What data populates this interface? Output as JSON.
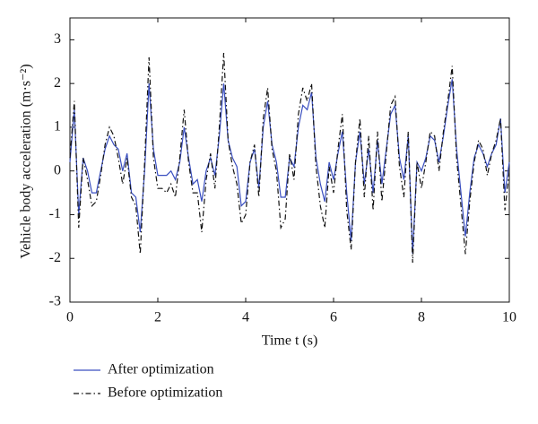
{
  "chart_data": {
    "type": "line",
    "xlabel": "Time t (s)",
    "ylabel": "Vehicle body acceleration (m·s⁻²)",
    "xlim": [
      0,
      10
    ],
    "xticks": [
      0,
      2,
      4,
      6,
      8,
      10
    ],
    "ylim": [
      -3,
      3.5
    ],
    "yticks": [
      -3,
      -2,
      -1,
      0,
      1,
      2,
      3
    ],
    "x": [
      0,
      0.1,
      0.2,
      0.3,
      0.4,
      0.5,
      0.6,
      0.7,
      0.8,
      0.9,
      1,
      1.1,
      1.2,
      1.3,
      1.4,
      1.5,
      1.6,
      1.7,
      1.8,
      1.9,
      2,
      2.1,
      2.2,
      2.3,
      2.4,
      2.5,
      2.6,
      2.7,
      2.8,
      2.9,
      3,
      3.1,
      3.2,
      3.3,
      3.4,
      3.5,
      3.6,
      3.7,
      3.8,
      3.9,
      4,
      4.1,
      4.2,
      4.3,
      4.4,
      4.5,
      4.6,
      4.7,
      4.8,
      4.9,
      5,
      5.1,
      5.2,
      5.3,
      5.4,
      5.5,
      5.6,
      5.7,
      5.8,
      5.9,
      6,
      6.1,
      6.2,
      6.3,
      6.4,
      6.5,
      6.6,
      6.7,
      6.8,
      6.9,
      7,
      7.1,
      7.2,
      7.3,
      7.4,
      7.5,
      7.6,
      7.7,
      7.8,
      7.9,
      8,
      8.1,
      8.2,
      8.3,
      8.4,
      8.5,
      8.6,
      8.7,
      8.8,
      8.9,
      9,
      9.1,
      9.2,
      9.3,
      9.4,
      9.5,
      9.6,
      9.7,
      9.8,
      9.9,
      10
    ],
    "series": [
      {
        "name": "After optimization",
        "color": "#3a4fc0",
        "style": "solid",
        "values": [
          0.2,
          1.4,
          -1.0,
          0.3,
          0,
          -0.5,
          -0.5,
          0,
          0.5,
          0.8,
          0.6,
          0.5,
          0,
          0.4,
          -0.5,
          -0.6,
          -1.4,
          0,
          2.0,
          0.5,
          -0.1,
          -0.1,
          -0.1,
          0,
          -0.2,
          0.2,
          1.0,
          0.3,
          -0.3,
          -0.2,
          -0.7,
          0,
          0.3,
          -0.1,
          0.8,
          2.0,
          0.7,
          0.3,
          0.1,
          -0.8,
          -0.7,
          0.2,
          0.5,
          -0.4,
          1.0,
          1.6,
          0.6,
          0.2,
          -0.6,
          -0.6,
          0.3,
          0.1,
          1.0,
          1.5,
          1.4,
          1.8,
          0.3,
          -0.3,
          -0.7,
          0.2,
          -0.2,
          0.4,
          0.9,
          -0.5,
          -1.6,
          0.2,
          0.9,
          -0.3,
          0.5,
          -0.5,
          0.7,
          -0.3,
          0.5,
          1.3,
          1.5,
          0.3,
          -0.2,
          0.8,
          -1.9,
          0.2,
          0,
          0.3,
          0.8,
          0.7,
          0.2,
          0.8,
          1.5,
          2.1,
          0.5,
          -0.5,
          -1.5,
          -0.5,
          0.3,
          0.6,
          0.4,
          0.1,
          0.4,
          0.6,
          1.2,
          -0.5,
          0.2
        ]
      },
      {
        "name": "Before optimization",
        "color": "#111111",
        "style": "dashdot",
        "values": [
          0.3,
          1.6,
          -1.3,
          0.3,
          -0.2,
          -0.8,
          -0.7,
          -0.1,
          0.6,
          1.0,
          0.8,
          0.3,
          -0.3,
          0.3,
          -0.6,
          -0.8,
          -1.9,
          0.2,
          2.6,
          0.3,
          -0.4,
          -0.4,
          -0.5,
          -0.3,
          -0.6,
          0.3,
          1.4,
          0.2,
          -0.5,
          -0.5,
          -1.4,
          -0.2,
          0.4,
          -0.4,
          1.0,
          2.7,
          0.7,
          0.1,
          -0.3,
          -1.2,
          -1.0,
          0.2,
          0.6,
          -0.6,
          1.2,
          1.9,
          0.5,
          0,
          -1.3,
          -1.1,
          0.4,
          -0.2,
          1.3,
          1.9,
          1.6,
          2.0,
          0.1,
          -0.8,
          -1.3,
          0.1,
          -0.5,
          0.5,
          1.3,
          -0.9,
          -1.8,
          0.2,
          1.2,
          -0.6,
          0.8,
          -0.9,
          0.9,
          -0.7,
          0.4,
          1.5,
          1.7,
          0.1,
          -0.6,
          0.9,
          -2.1,
          0.2,
          -0.4,
          0.2,
          0.9,
          0.8,
          0,
          0.9,
          1.6,
          2.4,
          0.3,
          -0.8,
          -1.9,
          -0.7,
          0.2,
          0.7,
          0.5,
          -0.1,
          0.4,
          0.7,
          1.2,
          -0.9,
          0
        ]
      }
    ]
  }
}
